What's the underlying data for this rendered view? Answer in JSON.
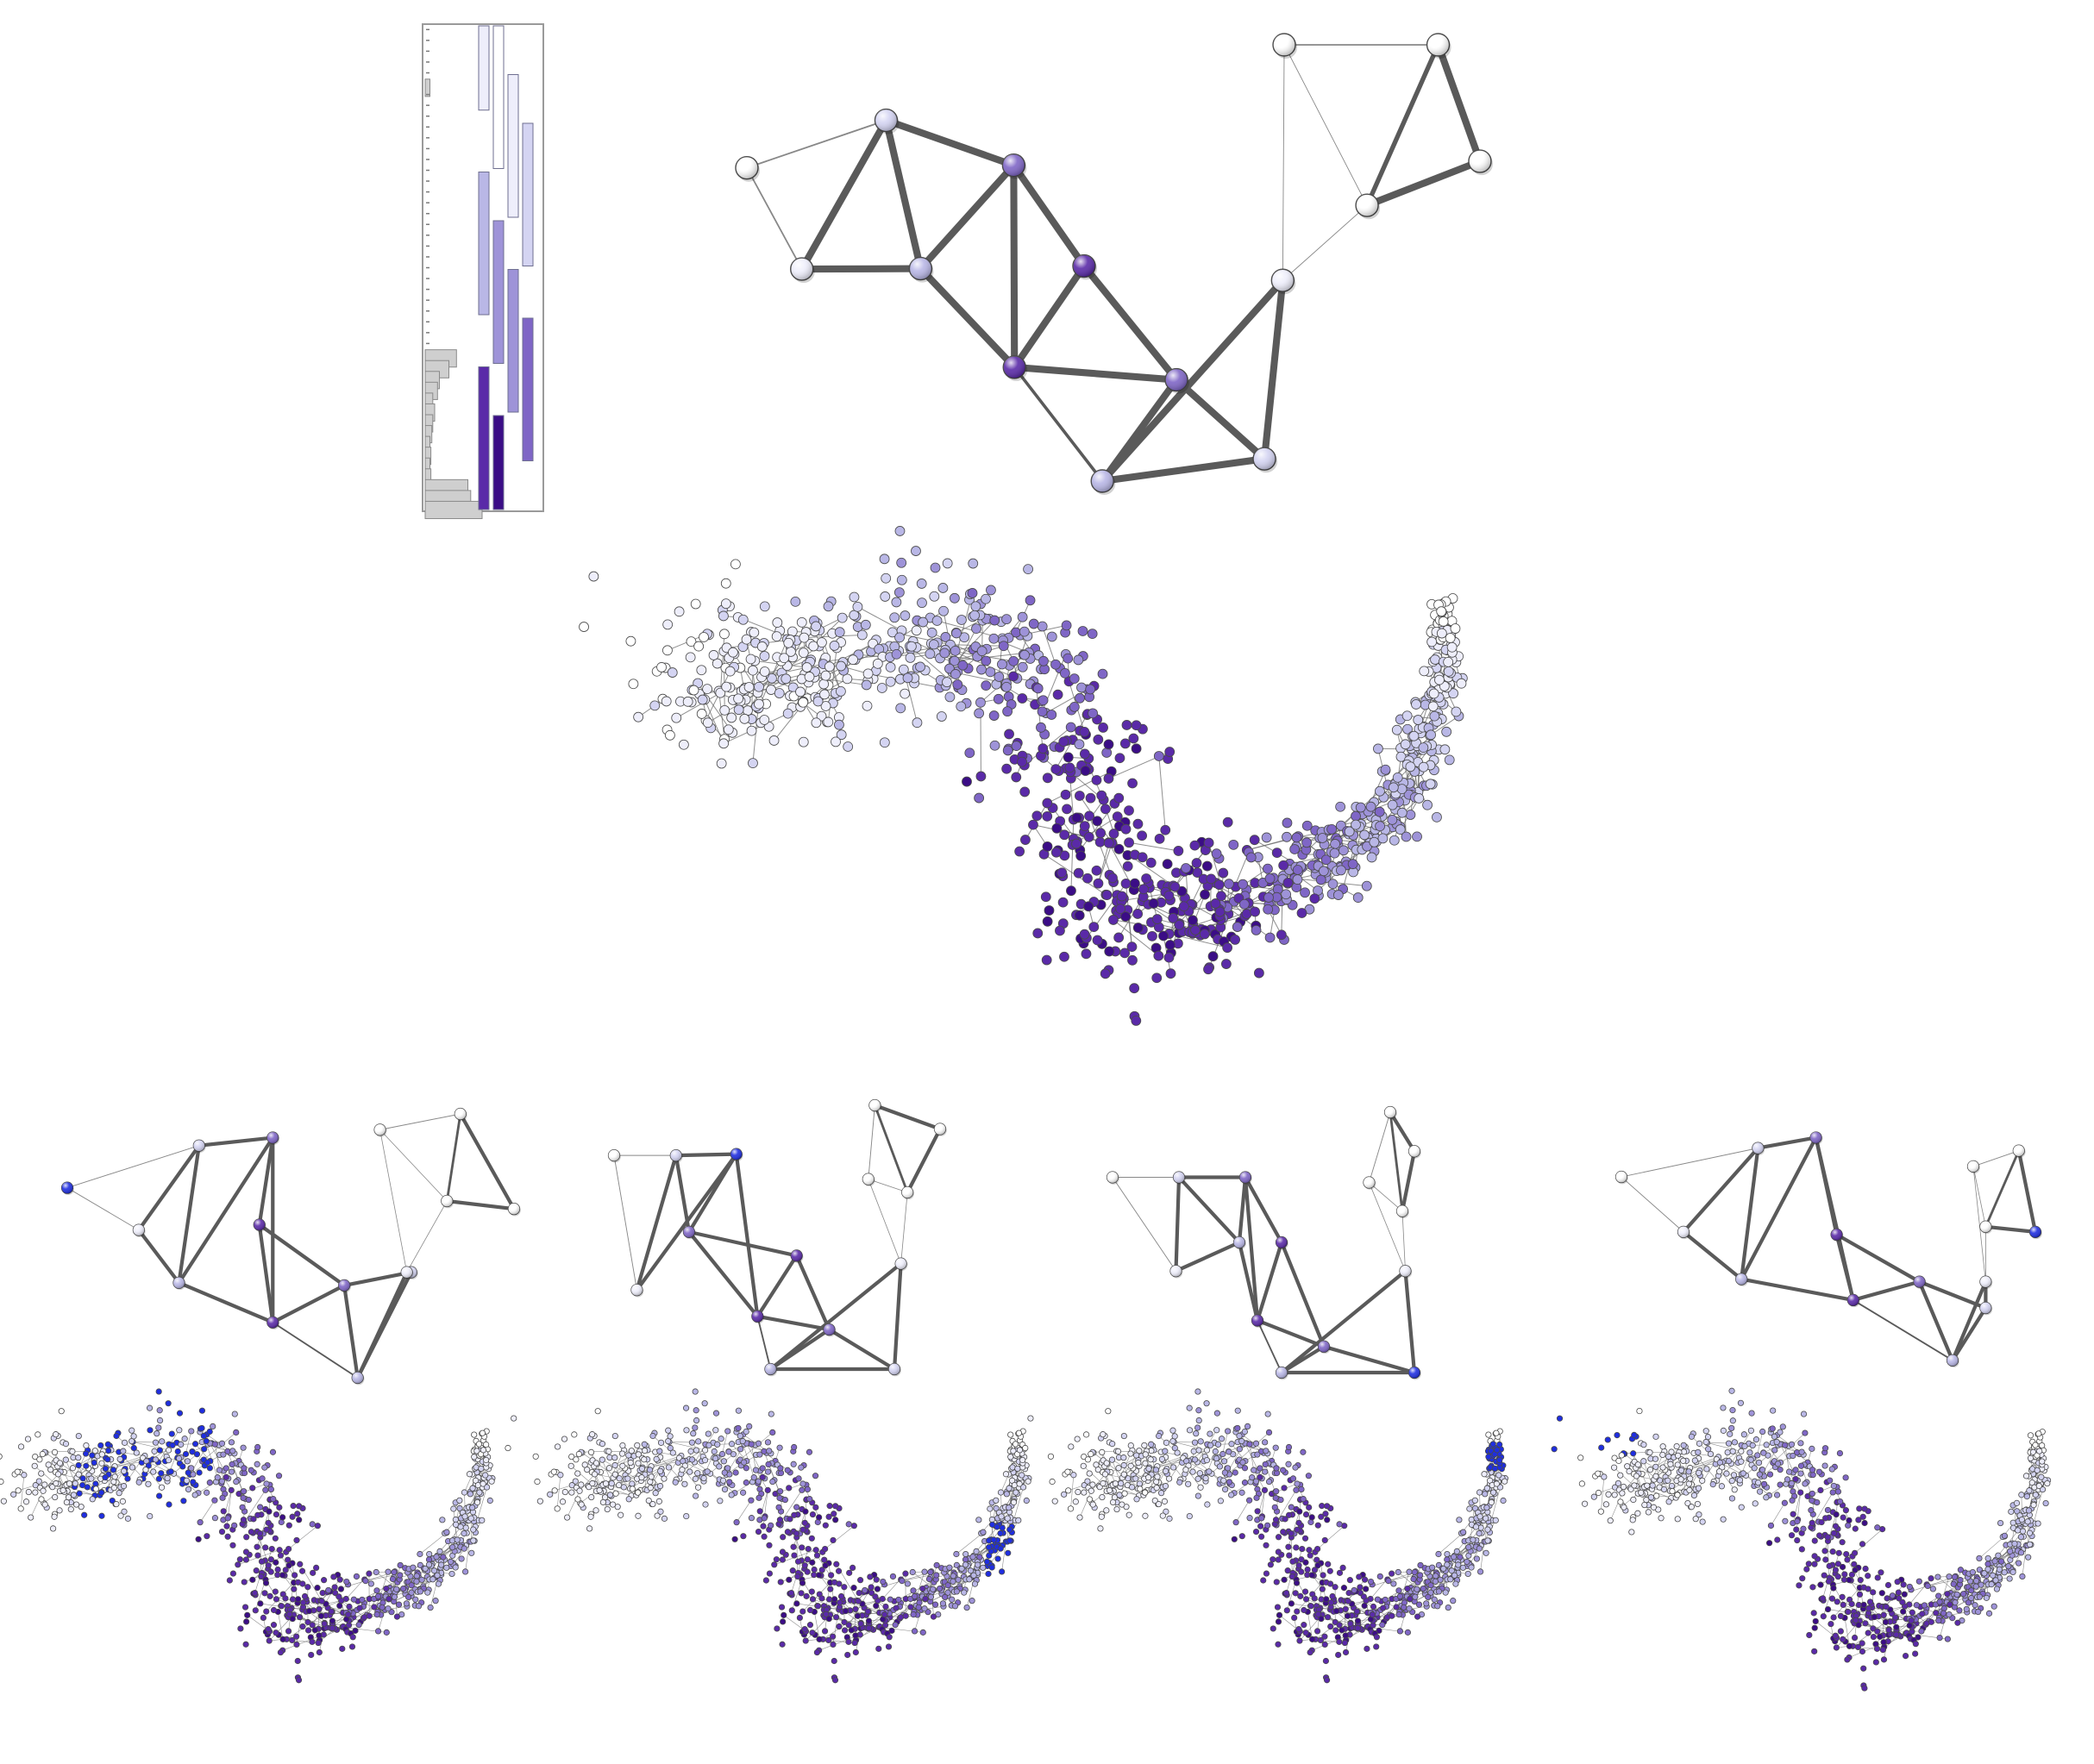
{
  "colors": {
    "background": "#ffffff",
    "edge": "#5a5a5a",
    "thin_edge": "#888888",
    "gray_bar": "#cfcfcf",
    "highlight_blue": "#1f2ee0",
    "node_scale": [
      "#ffffff",
      "#eeeefb",
      "#d4d4f2",
      "#b9b7e6",
      "#9e93d8",
      "#7f66c6",
      "#5a2aa8",
      "#3b0d86"
    ]
  },
  "histogram": {
    "gray_bar_widths": [
      0.0,
      0.0,
      0.0,
      0.0,
      0.0,
      0.05,
      0.0,
      0.0,
      0.0,
      0.0,
      0.0,
      0.0,
      0.0,
      0.0,
      0.0,
      0.0,
      0.0,
      0.0,
      0.0,
      0.0,
      0.0,
      0.0,
      0.0,
      0.0,
      0.0,
      0.0,
      0.0,
      0.0,
      0.0,
      0.0,
      0.33,
      0.25,
      0.15,
      0.13,
      0.08,
      0.1,
      0.08,
      0.07,
      0.05,
      0.06,
      0.05,
      0.06,
      0.45,
      0.48,
      0.6
    ],
    "range_bars": [
      {
        "column": 0,
        "start": 0.0,
        "end": 0.18,
        "level": 1
      },
      {
        "column": 1,
        "start": 0.0,
        "end": 0.3,
        "level": 0
      },
      {
        "column": 2,
        "start": 0.1,
        "end": 0.4,
        "level": 1
      },
      {
        "column": 3,
        "start": 0.2,
        "end": 0.5,
        "level": 2
      },
      {
        "column": 0,
        "start": 0.3,
        "end": 0.6,
        "level": 3
      },
      {
        "column": 1,
        "start": 0.4,
        "end": 0.7,
        "level": 4
      },
      {
        "column": 2,
        "start": 0.5,
        "end": 0.8,
        "level": 4
      },
      {
        "column": 3,
        "start": 0.6,
        "end": 0.9,
        "level": 5
      },
      {
        "column": 0,
        "start": 0.7,
        "end": 1.0,
        "level": 6
      },
      {
        "column": 1,
        "start": 0.8,
        "end": 1.0,
        "level": 7
      }
    ]
  },
  "mapper_graph": {
    "nodes": [
      {
        "id": "n1",
        "level": 0
      },
      {
        "id": "n2",
        "level": 1
      },
      {
        "id": "n3",
        "level": 2
      },
      {
        "id": "n4",
        "level": 3
      },
      {
        "id": "n5",
        "level": 5
      },
      {
        "id": "n6",
        "level": 6
      },
      {
        "id": "n7",
        "level": 6
      },
      {
        "id": "n8",
        "level": 5
      },
      {
        "id": "n9",
        "level": 3
      },
      {
        "id": "n10",
        "level": 2
      },
      {
        "id": "n11",
        "level": 1
      },
      {
        "id": "n12",
        "level": 0
      },
      {
        "id": "n13",
        "level": 0
      },
      {
        "id": "n14",
        "level": 0
      },
      {
        "id": "n15",
        "level": 0
      }
    ],
    "edges": [
      {
        "a": "n1",
        "b": "n2",
        "w": 2
      },
      {
        "a": "n1",
        "b": "n3",
        "w": 2
      },
      {
        "a": "n2",
        "b": "n3",
        "w": 9
      },
      {
        "a": "n2",
        "b": "n4",
        "w": 9
      },
      {
        "a": "n3",
        "b": "n4",
        "w": 9
      },
      {
        "a": "n3",
        "b": "n5",
        "w": 9
      },
      {
        "a": "n4",
        "b": "n5",
        "w": 9
      },
      {
        "a": "n5",
        "b": "n6",
        "w": 9
      },
      {
        "a": "n5",
        "b": "n7",
        "w": 9
      },
      {
        "a": "n4",
        "b": "n7",
        "w": 9
      },
      {
        "a": "n6",
        "b": "n7",
        "w": 9
      },
      {
        "a": "n6",
        "b": "n8",
        "w": 9
      },
      {
        "a": "n7",
        "b": "n8",
        "w": 9
      },
      {
        "a": "n7",
        "b": "n9",
        "w": 4
      },
      {
        "a": "n8",
        "b": "n9",
        "w": 9
      },
      {
        "a": "n8",
        "b": "n10",
        "w": 9
      },
      {
        "a": "n9",
        "b": "n10",
        "w": 9
      },
      {
        "a": "n9",
        "b": "n11",
        "w": 9
      },
      {
        "a": "n10",
        "b": "n11",
        "w": 9
      },
      {
        "a": "n11",
        "b": "n12",
        "w": 1
      },
      {
        "a": "n11",
        "b": "n13",
        "w": 1
      },
      {
        "a": "n12",
        "b": "n13",
        "w": 1
      },
      {
        "a": "n12",
        "b": "n14",
        "w": 2
      },
      {
        "a": "n13",
        "b": "n14",
        "w": 6
      },
      {
        "a": "n13",
        "b": "n15",
        "w": 9
      },
      {
        "a": "n14",
        "b": "n15",
        "w": 9
      }
    ]
  },
  "small_graphs": [
    {
      "highlight": "n1"
    },
    {
      "highlight": "n4"
    },
    {
      "highlight": "n10"
    },
    {
      "highlight": "n15"
    }
  ],
  "point_clouds": [
    {
      "highlight": "none"
    },
    {
      "highlight": "left-lobes"
    },
    {
      "highlight": "right-arm"
    },
    {
      "highlight": "right-tip"
    },
    {
      "highlight": "left-tip"
    }
  ]
}
